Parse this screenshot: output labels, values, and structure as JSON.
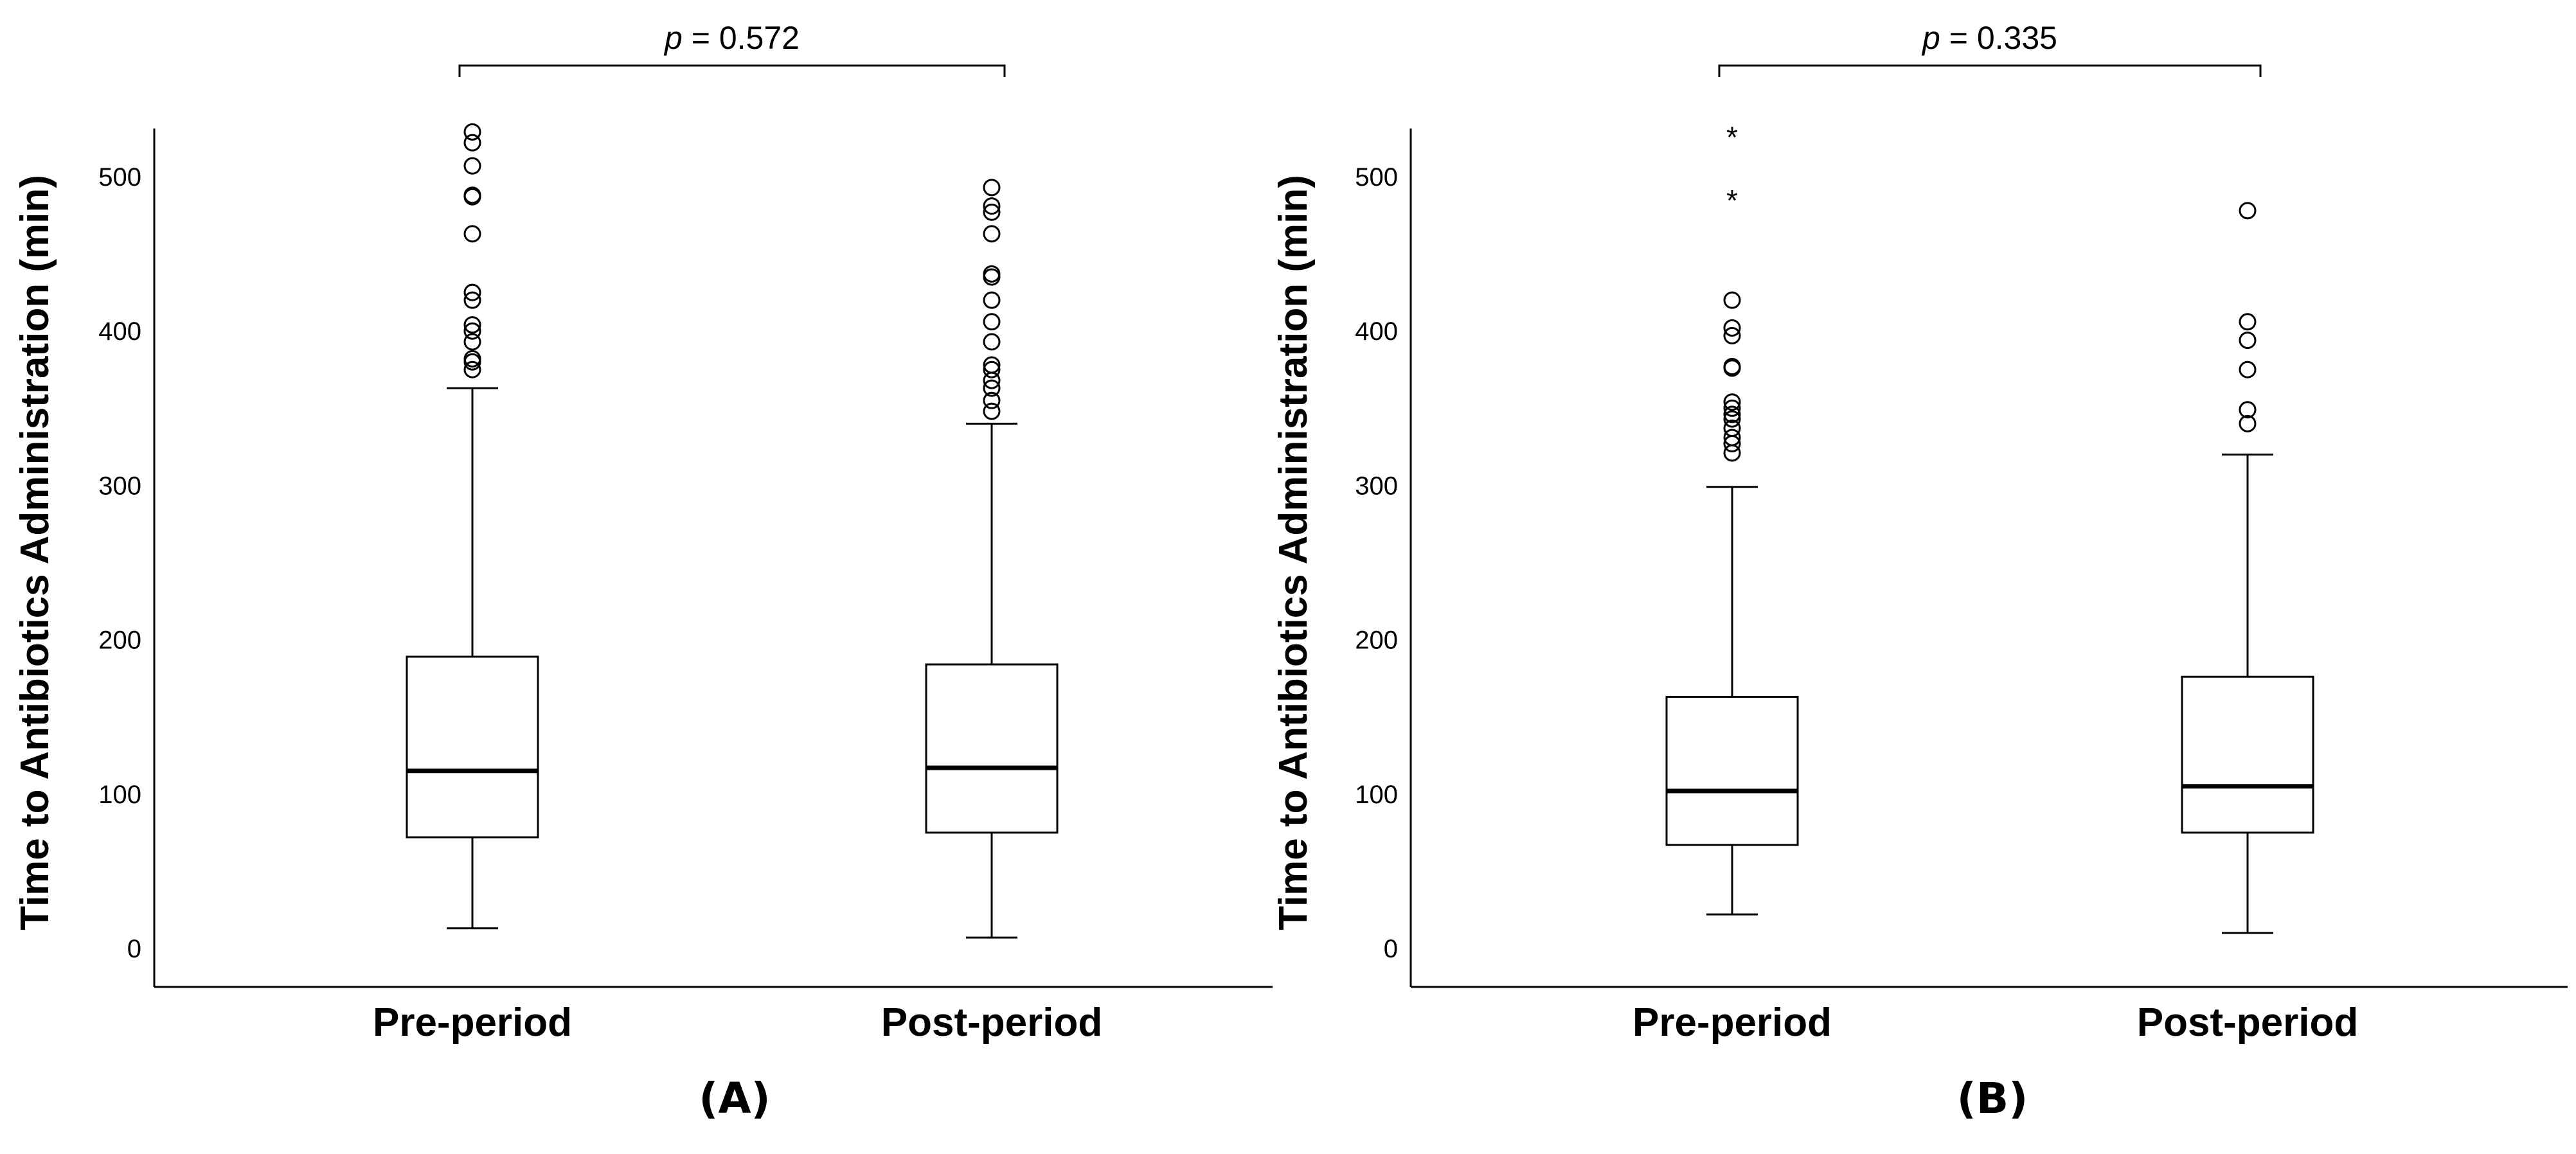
{
  "chart_data": [
    {
      "type": "boxplot",
      "panel_label": "(A)",
      "p_symbol": "p",
      "p_text": " = 0.572",
      "ylabel": "Time to Antibiotics Administration (min)",
      "xlabel": "",
      "categories": [
        "Pre-period",
        "Post-period"
      ],
      "ylim": [
        -25,
        530
      ],
      "yticks": [
        0,
        100,
        200,
        300,
        400,
        500
      ],
      "grid": false,
      "boxes": [
        {
          "name": "Pre-period",
          "whisker_low": 13,
          "q1": 72,
          "median": 115,
          "q3": 189,
          "whisker_high": 363,
          "outliers": [
            375,
            380,
            382,
            393,
            400,
            404,
            420,
            425,
            463,
            487,
            488,
            507,
            522,
            529
          ],
          "extremes": []
        },
        {
          "name": "Post-period",
          "whisker_low": 7,
          "q1": 75,
          "median": 117,
          "q3": 184,
          "whisker_high": 340,
          "outliers": [
            348,
            355,
            363,
            368,
            375,
            378,
            393,
            406,
            420,
            435,
            437,
            463,
            477,
            481,
            493
          ],
          "extremes": []
        }
      ]
    },
    {
      "type": "boxplot",
      "panel_label": "(B)",
      "p_symbol": "p",
      "p_text": " = 0.335",
      "ylabel": "Time to Antibiotics Administration (min)",
      "xlabel": "",
      "categories": [
        "Pre-period",
        "Post-period"
      ],
      "ylim": [
        -25,
        530
      ],
      "yticks": [
        0,
        100,
        200,
        300,
        400,
        500
      ],
      "grid": false,
      "boxes": [
        {
          "name": "Pre-period",
          "whisker_low": 22,
          "q1": 67,
          "median": 102,
          "q3": 163,
          "whisker_high": 299,
          "outliers": [
            321,
            327,
            331,
            337,
            343,
            346,
            350,
            354,
            376,
            377,
            397,
            402,
            420
          ],
          "extremes": [
            487,
            528
          ]
        },
        {
          "name": "Post-period",
          "whisker_low": 10,
          "q1": 75,
          "median": 105,
          "q3": 176,
          "whisker_high": 320,
          "outliers": [
            340,
            349,
            375,
            394,
            406,
            478
          ],
          "extremes": []
        }
      ]
    }
  ]
}
